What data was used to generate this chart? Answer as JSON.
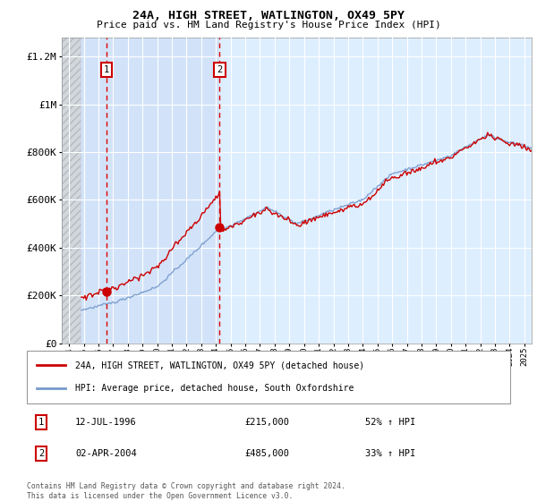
{
  "title": "24A, HIGH STREET, WATLINGTON, OX49 5PY",
  "subtitle": "Price paid vs. HM Land Registry's House Price Index (HPI)",
  "ylabel_ticks": [
    "£0",
    "£200K",
    "£400K",
    "£600K",
    "£800K",
    "£1M",
    "£1.2M"
  ],
  "ytick_values": [
    0,
    200000,
    400000,
    600000,
    800000,
    1000000,
    1200000
  ],
  "ylim": [
    0,
    1280000
  ],
  "xlim_start": 1993.5,
  "xlim_end": 2025.5,
  "hatch_end_year": 1994.75,
  "blue_shade_start": 1994.75,
  "blue_shade_end": 2004.25,
  "line1_color": "#cc0000",
  "line2_color": "#7799cc",
  "marker_color": "#cc0000",
  "transaction1_year": 1996.533,
  "transaction1_price": 215000,
  "transaction2_year": 2004.253,
  "transaction2_price": 485000,
  "legend_line1": "24A, HIGH STREET, WATLINGTON, OX49 5PY (detached house)",
  "legend_line2": "HPI: Average price, detached house, South Oxfordshire",
  "table_entries": [
    {
      "num": "1",
      "date": "12-JUL-1996",
      "price": "£215,000",
      "change": "52% ↑ HPI"
    },
    {
      "num": "2",
      "date": "02-APR-2004",
      "price": "£485,000",
      "change": "33% ↑ HPI"
    }
  ],
  "footnote": "Contains HM Land Registry data © Crown copyright and database right 2024.\nThis data is licensed under the Open Government Licence v3.0.",
  "background_color": "#ffffff",
  "plot_bg_color": "#ddeeff",
  "grid_color": "#ffffff"
}
